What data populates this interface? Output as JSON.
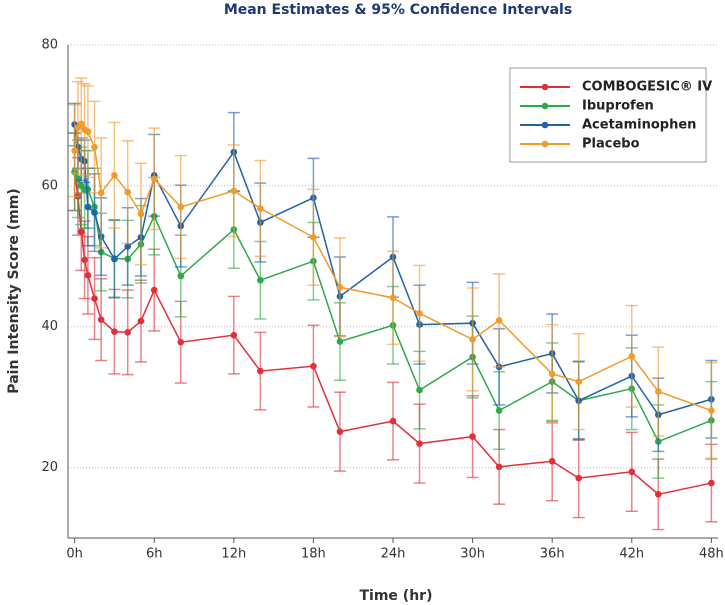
{
  "chart_data": {
    "type": "line",
    "title": "Mean Estimates & 95% Confidence Intervals",
    "x_label": "Time (hr)",
    "y_label": "Pain Intensity Score (mm)",
    "x": [
      0,
      0.25,
      0.5,
      0.75,
      1,
      1.5,
      2,
      3,
      4,
      5,
      6,
      8,
      12,
      14,
      18,
      20,
      24,
      26,
      30,
      32,
      36,
      38,
      42,
      44,
      48
    ],
    "xlim": [
      -0.5,
      48.5
    ],
    "xticks": [
      {
        "value": 0,
        "label": "0h"
      },
      {
        "value": 6,
        "label": "6h"
      },
      {
        "value": 12,
        "label": "12h"
      },
      {
        "value": 18,
        "label": "18h"
      },
      {
        "value": 24,
        "label": "24h"
      },
      {
        "value": 30,
        "label": "30h"
      },
      {
        "value": 36,
        "label": "36h"
      },
      {
        "value": 42,
        "label": "42h"
      },
      {
        "value": 48,
        "label": "48h"
      }
    ],
    "ylim": [
      10,
      80
    ],
    "yticks": [
      20,
      40,
      60,
      80
    ],
    "grid": true,
    "legend": "upper right",
    "series": [
      {
        "name": "COMBOGESIC® IV",
        "color": "#e0303a",
        "values": [
          62,
          58.5,
          53.5,
          49.5,
          47.3,
          44,
          41,
          39.3,
          39.2,
          40.8,
          45.2,
          37.8,
          38.8,
          33.7,
          34.4,
          25.1,
          26.6,
          23.4,
          24.4,
          20.1,
          20.9,
          18.5,
          19.4,
          16.2,
          17.8
        ],
        "errors": [
          5.5,
          5.5,
          5.5,
          5.5,
          5.5,
          5.8,
          5.8,
          6,
          6,
          5.8,
          5.8,
          5.8,
          5.5,
          5.5,
          5.8,
          5.6,
          5.5,
          5.6,
          5.8,
          5.3,
          5.6,
          5.6,
          5.6,
          5,
          5.5
        ]
      },
      {
        "name": "Ibuprofen",
        "color": "#2eaa4a",
        "values": [
          62,
          61,
          60,
          59.5,
          59.5,
          57,
          50.6,
          49.7,
          49.6,
          51.7,
          55.7,
          47.2,
          53.8,
          46.6,
          49.3,
          37.9,
          40.2,
          31,
          35.7,
          28.1,
          32.2,
          29.5,
          31.2,
          23.7,
          26.7
        ],
        "errors": [
          5.5,
          5.5,
          5.5,
          5.5,
          5.5,
          5.5,
          5.5,
          5.5,
          5.5,
          5.5,
          5.5,
          5.8,
          5.5,
          5.5,
          5.5,
          5.5,
          5.5,
          5.5,
          5.8,
          5.5,
          5.5,
          5.5,
          5.8,
          5.2,
          5.5
        ]
      },
      {
        "name": "Acetaminophen",
        "color": "#1f63a8",
        "values": [
          68.7,
          65.5,
          63.8,
          63.5,
          57,
          56.2,
          52.8,
          49.6,
          51.4,
          52.7,
          61.5,
          54.3,
          64.8,
          54.8,
          58.3,
          44.3,
          49.9,
          40.3,
          40.5,
          34.3,
          36.2,
          29.5,
          33,
          27.5,
          29.7
        ],
        "errors": [
          3,
          3,
          3,
          3,
          5.5,
          5.5,
          5.5,
          5.5,
          5.5,
          5.5,
          5.8,
          5.8,
          5.6,
          5.6,
          5.6,
          5.6,
          5.7,
          5.6,
          5.8,
          5.4,
          5.6,
          5.6,
          5.8,
          5.2,
          5.5
        ]
      },
      {
        "name": "Placebo",
        "color": "#f39a2b",
        "values": [
          65,
          68.3,
          68.8,
          68,
          67.7,
          65.5,
          59,
          61.5,
          59.1,
          56,
          61,
          57,
          59.3,
          56.8,
          52.7,
          45.6,
          44.1,
          41.9,
          38.2,
          40.9,
          33.3,
          32.2,
          35.8,
          30.8,
          28.1
        ],
        "errors": [
          6.5,
          6.5,
          6.5,
          6.5,
          6.5,
          6.5,
          7.8,
          7.5,
          7.3,
          7.2,
          7.2,
          7.3,
          6.5,
          6.8,
          6.8,
          7,
          6.6,
          6.8,
          7.3,
          6.6,
          7,
          6.8,
          7.2,
          6.3,
          6.8
        ]
      }
    ]
  }
}
